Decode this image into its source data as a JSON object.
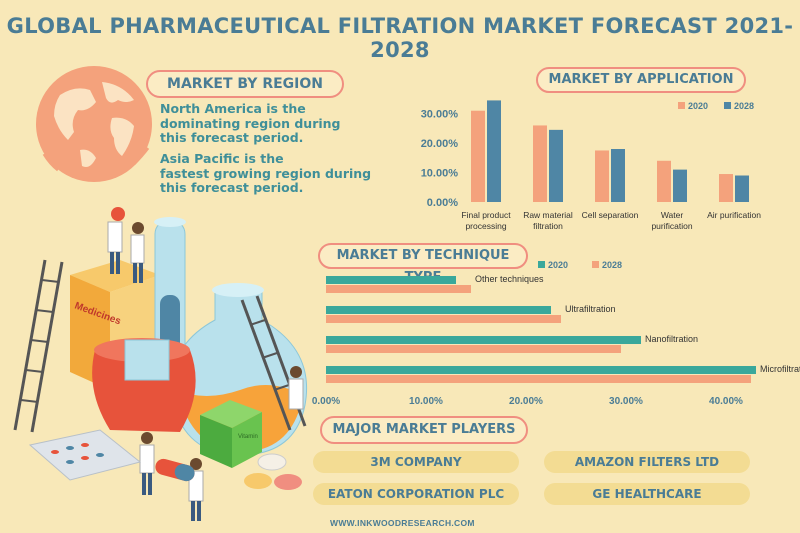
{
  "title": "GLOBAL PHARMACEUTICAL FILTRATION MARKET FORECAST 2021-2028",
  "colors": {
    "coral": "#f4a27c",
    "steel": "#4f86a5",
    "teal": "#3aa89b",
    "pill_border": "#f08e80",
    "heading": "#4a7c95"
  },
  "region": {
    "heading": "MARKET BY REGION",
    "lines1": [
      "North America is the",
      "dominating region during",
      "this forecast period."
    ],
    "lines2": [
      "Asia Pacific is the",
      "fastest growing region during",
      "this forecast period."
    ]
  },
  "application": {
    "heading": "MARKET BY APPLICATION"
  },
  "technique": {
    "heading": "MARKET BY TECHNIQUE TYPE"
  },
  "players": {
    "heading": "MAJOR MARKET PLAYERS",
    "list": [
      "3M COMPANY",
      "AMAZON FILTERS LTD",
      "EATON CORPORATION PLC",
      "GE HEALTHCARE"
    ]
  },
  "illustration": {
    "box_label": "Medicines",
    "small_box_label": "Vitamin"
  },
  "footer": "WWW.INKWOODRESEARCH.COM",
  "chart_data": [
    {
      "type": "bar",
      "title": "MARKET BY APPLICATION",
      "categories": [
        [
          "Final product",
          "processing"
        ],
        [
          "Raw material",
          "filtration"
        ],
        [
          "Cell separation"
        ],
        [
          "Water",
          "purification"
        ],
        [
          "Air purification"
        ]
      ],
      "series": [
        {
          "name": "2020",
          "color": "#f4a27c",
          "values": [
            31,
            26,
            17.5,
            14,
            9.5
          ]
        },
        {
          "name": "2028",
          "color": "#4f86a5",
          "values": [
            34.5,
            24.5,
            18,
            11,
            9
          ]
        }
      ],
      "yticks": [
        "0.00%",
        "10.00%",
        "20.00%",
        "30.00%"
      ],
      "ylim": [
        0,
        36
      ],
      "legend": "top-right"
    },
    {
      "type": "bar",
      "orientation": "horizontal",
      "title": "MARKET BY TECHNIQUE TYPE",
      "categories": [
        "Other techniques",
        "Ultrafiltration",
        "Nanofiltration",
        "Microfiltration"
      ],
      "series": [
        {
          "name": "2020",
          "color": "#3aa89b",
          "values": [
            13,
            22.5,
            31.5,
            43
          ]
        },
        {
          "name": "2028",
          "color": "#f4a27c",
          "values": [
            14.5,
            23.5,
            29.5,
            42.5
          ]
        }
      ],
      "xticks": [
        "0.00%",
        "10.00%",
        "20.00%",
        "30.00%",
        "40.00%"
      ],
      "xlim": [
        0,
        45
      ],
      "legend": "top"
    }
  ]
}
